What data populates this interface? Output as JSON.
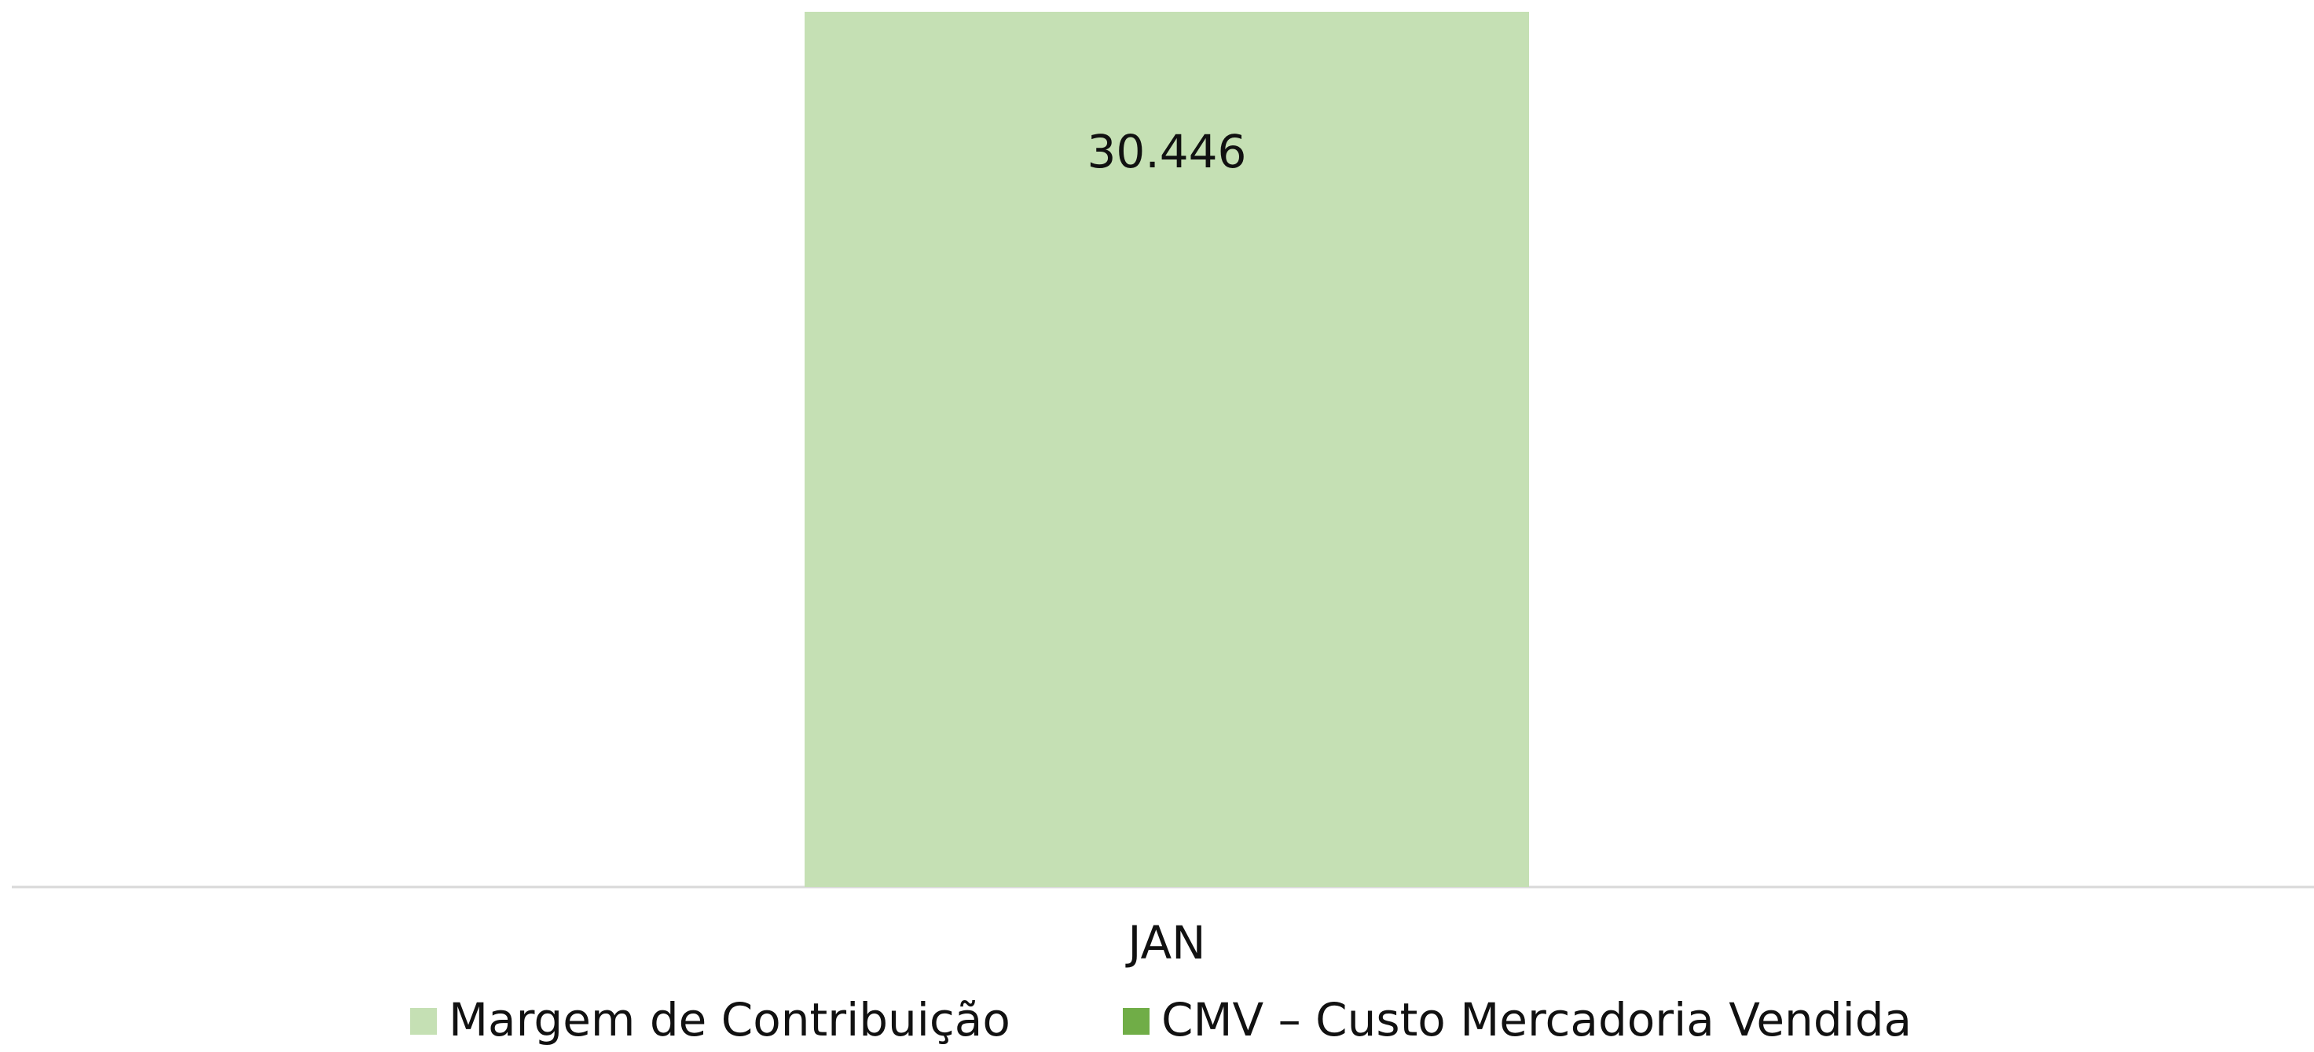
{
  "chart_data": {
    "type": "bar",
    "stacked": true,
    "categories": [
      "JAN"
    ],
    "series": [
      {
        "name": "Margem de Contribuição",
        "color": "#c5e0b4",
        "values": [
          30446
        ],
        "value_labels": [
          "30.446"
        ]
      },
      {
        "name": "CMV – Custo Mercadoria Vendida",
        "color": "#70ad47",
        "values": [
          null
        ]
      }
    ]
  }
}
